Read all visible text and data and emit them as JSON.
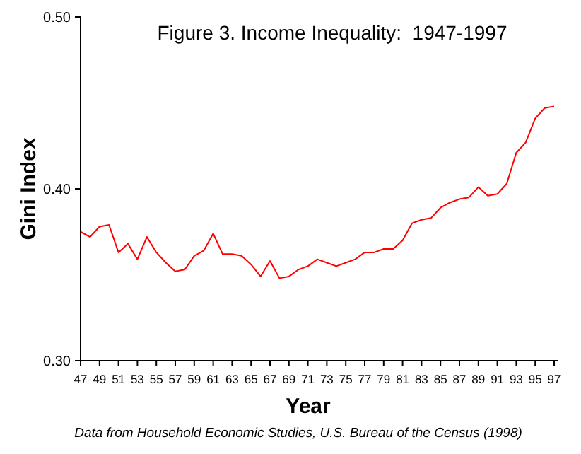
{
  "chart_data": {
    "type": "line",
    "title": "Figure 3. Income Inequality:  1947-1997",
    "xlabel": "Year",
    "ylabel": "Gini Index",
    "annotations": [
      "Data from Household Economic Studies, U.S. Bureau of the Census (1998)"
    ],
    "categories": [
      "47",
      null,
      "49",
      null,
      "51",
      null,
      "53",
      null,
      "55",
      null,
      "57",
      null,
      "59",
      null,
      "61",
      null,
      "63",
      null,
      "65",
      null,
      "67",
      null,
      "69",
      null,
      "71",
      null,
      "73",
      null,
      "75",
      null,
      "77",
      null,
      "79",
      null,
      "81",
      null,
      "83",
      null,
      "85",
      null,
      "87",
      null,
      "89",
      null,
      "91",
      null,
      "93",
      null,
      "95",
      null,
      "97"
    ],
    "series": [
      {
        "color": "#ff0000",
        "values": [
          0.375,
          0.372,
          0.378,
          0.379,
          0.363,
          0.368,
          0.359,
          0.372,
          0.363,
          0.357,
          0.352,
          0.353,
          0.361,
          0.364,
          0.374,
          0.362,
          0.362,
          0.361,
          0.356,
          0.349,
          0.358,
          0.348,
          0.349,
          0.353,
          0.355,
          0.359,
          0.357,
          0.355,
          0.357,
          0.359,
          0.363,
          0.363,
          0.365,
          0.365,
          0.37,
          0.38,
          0.382,
          0.383,
          0.389,
          0.392,
          0.394,
          0.395,
          0.401,
          0.396,
          0.397,
          0.403,
          0.421,
          0.427,
          0.441,
          0.447,
          0.448
        ]
      }
    ],
    "ylim": [
      0.3,
      0.5
    ],
    "yticks": [
      {
        "value": 0.3,
        "label": "0.30"
      },
      {
        "value": 0.4,
        "label": "0.40"
      },
      {
        "value": 0.5,
        "label": "0.50"
      }
    ],
    "grid": false,
    "marker": "none",
    "line_style": "solid"
  }
}
